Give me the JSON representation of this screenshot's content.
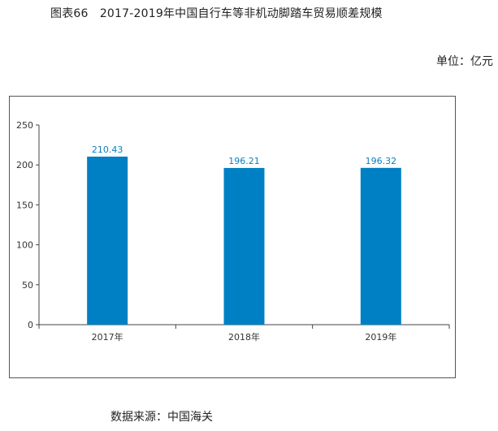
{
  "header": {
    "title": "图表66　2017-2019年中国自行车等非机动脚踏车贸易顺差规模",
    "unit": "单位：亿元"
  },
  "footer": {
    "source": "数据来源：中国海关"
  },
  "colors": {
    "bar": "#0080c4",
    "value_label": "#0a7fc0",
    "axis": "#444444"
  },
  "chart_data": {
    "type": "bar",
    "categories": [
      "2017年",
      "2018年",
      "2019年"
    ],
    "values": [
      210.43,
      196.21,
      196.32
    ],
    "value_labels": [
      "210.43",
      "196.21",
      "196.32"
    ],
    "y_ticks": [
      0,
      50,
      100,
      150,
      200,
      250
    ],
    "ylim": [
      0,
      250
    ],
    "grid": false,
    "legend": "none"
  }
}
